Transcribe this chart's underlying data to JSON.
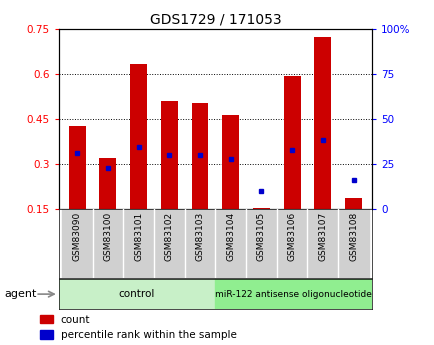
{
  "title": "GDS1729 / 171053",
  "samples": [
    "GSM83090",
    "GSM83100",
    "GSM83101",
    "GSM83102",
    "GSM83103",
    "GSM83104",
    "GSM83105",
    "GSM83106",
    "GSM83107",
    "GSM83108"
  ],
  "red_values": [
    0.425,
    0.32,
    0.635,
    0.51,
    0.505,
    0.465,
    0.152,
    0.595,
    0.725,
    0.185
  ],
  "blue_values": [
    0.335,
    0.285,
    0.355,
    0.33,
    0.33,
    0.315,
    0.21,
    0.345,
    0.38,
    0.245
  ],
  "red_base": 0.15,
  "ylim_left": [
    0.15,
    0.75
  ],
  "ylim_right": [
    0,
    100
  ],
  "yticks_left": [
    0.15,
    0.3,
    0.45,
    0.6,
    0.75
  ],
  "yticks_right": [
    0,
    25,
    50,
    75,
    100
  ],
  "ytick_labels_left": [
    "0.15",
    "0.3",
    "0.45",
    "0.6",
    "0.75"
  ],
  "ytick_labels_right": [
    "0",
    "25",
    "50",
    "75",
    "100%"
  ],
  "bar_color": "#cc0000",
  "dot_color": "#0000cc",
  "control_label": "control",
  "treatment_label": "miR-122 antisense oligonucleotide",
  "control_color": "#c8f0c8",
  "treatment_color": "#90ee90",
  "bar_width": 0.55,
  "legend_count": "count",
  "legend_pct": "percentile rank within the sample",
  "agent_label": "agent"
}
